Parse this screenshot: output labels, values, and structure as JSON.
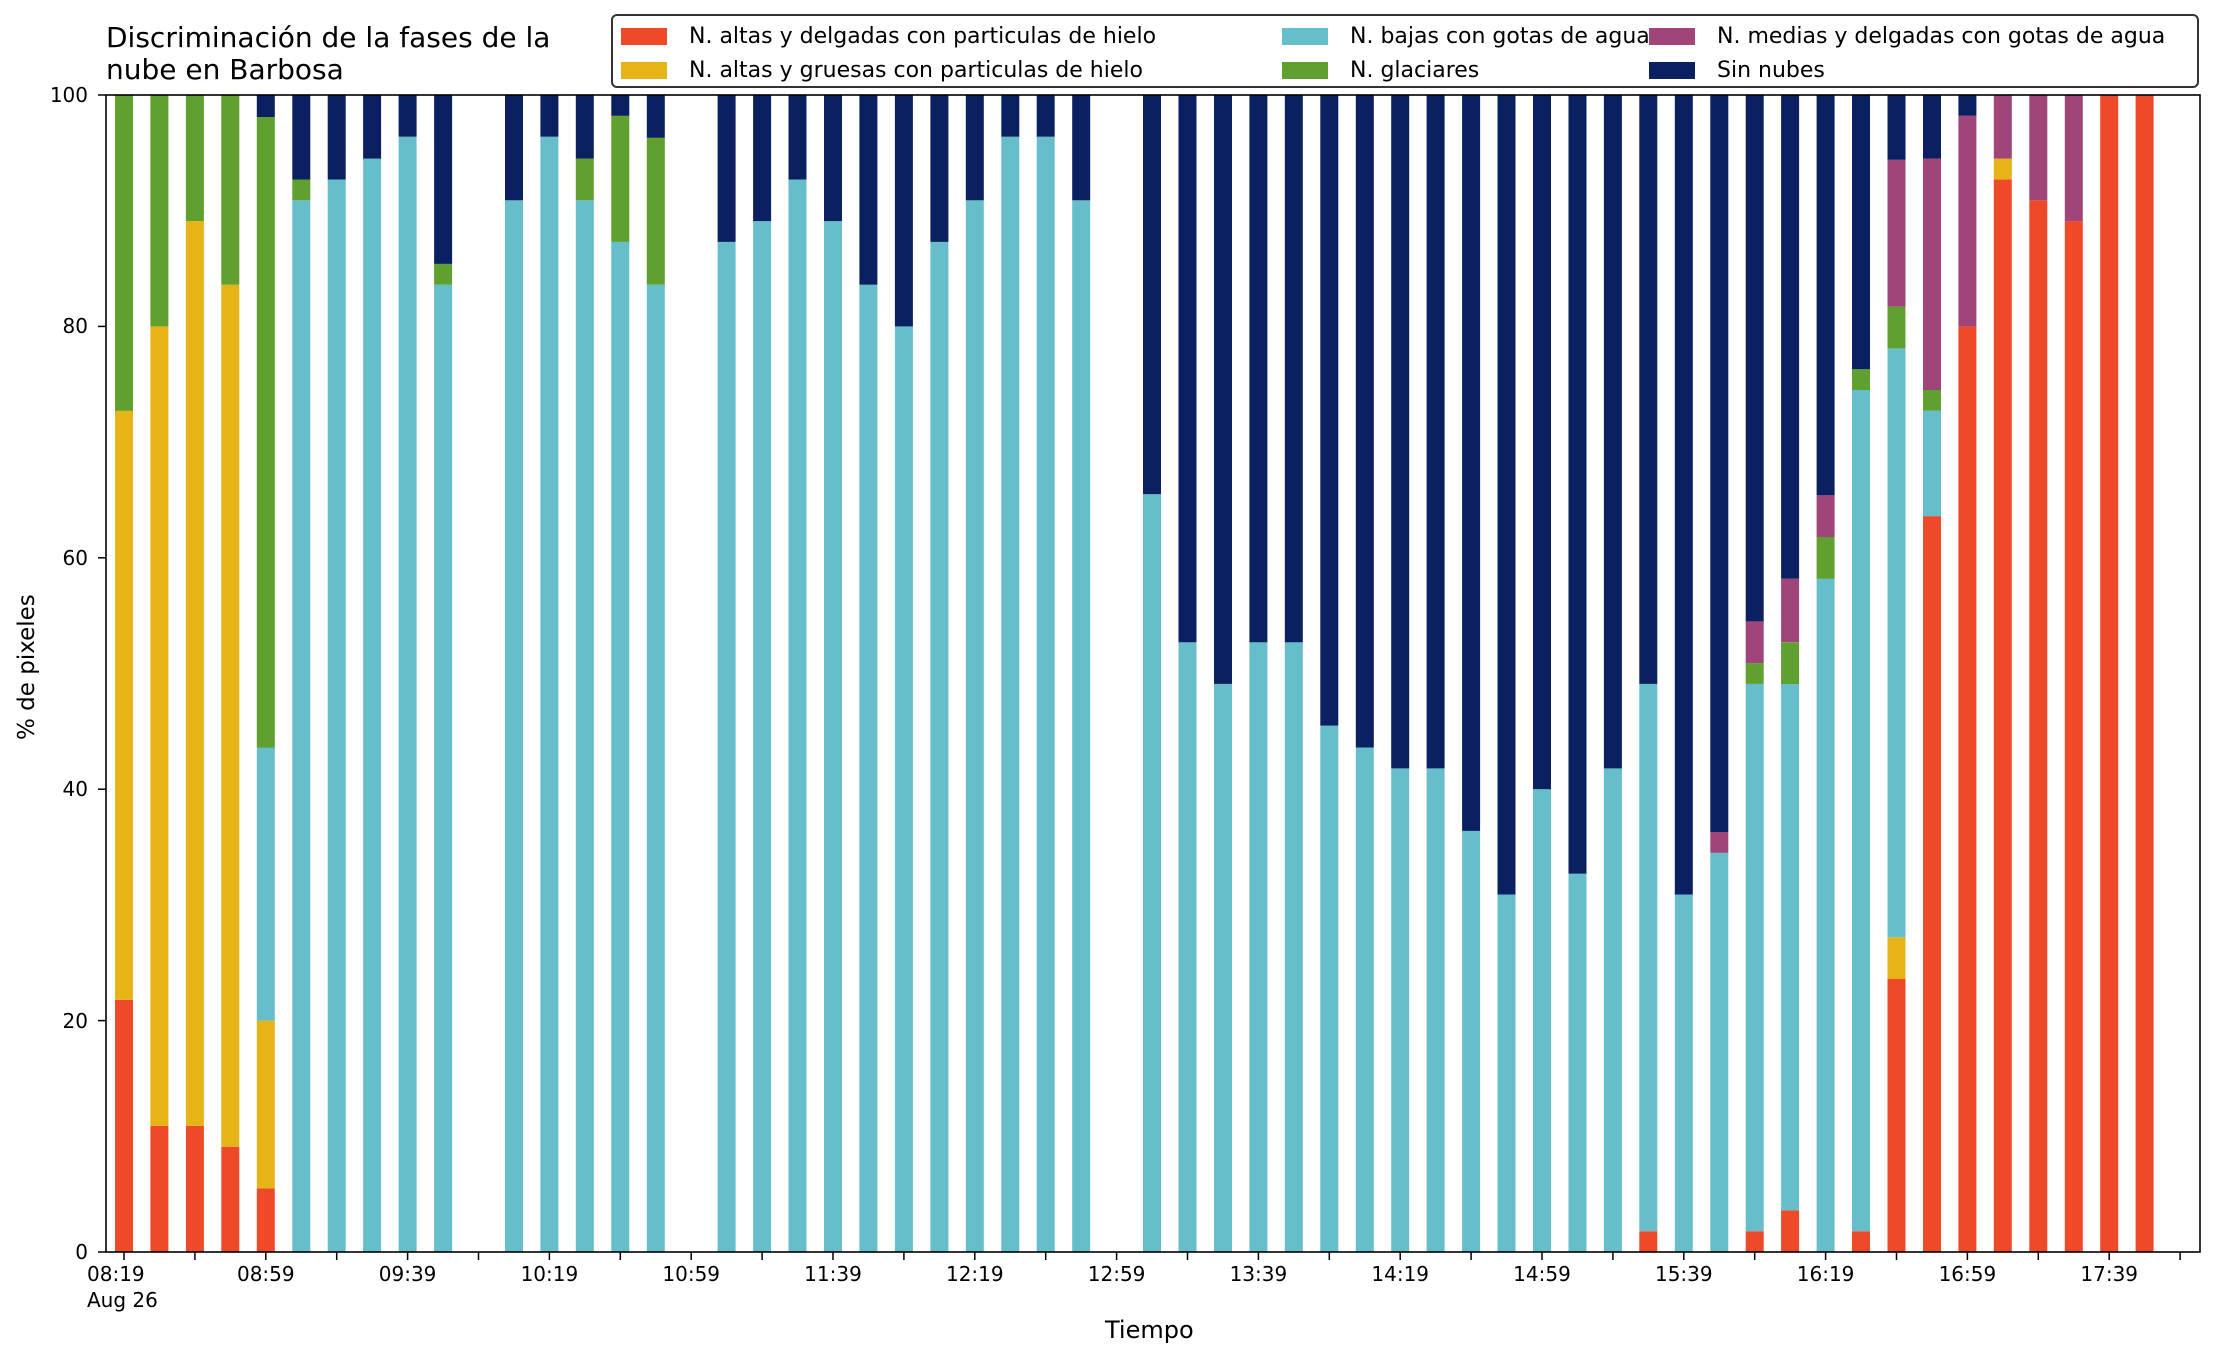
{
  "colors": {
    "ice_thin": "#EE4A2A",
    "ice_thick": "#E6B417",
    "water_low": "#66BECA",
    "glacial": "#5FA02E",
    "water_mid": "#A0457A",
    "clear": "#0A2060"
  },
  "chart_data": {
    "type": "bar",
    "stacked": true,
    "title": "Discriminación de la fases de la\nnube en Barbosa",
    "xlabel": "Tiempo",
    "ylabel": "% de pixeles",
    "ylim": [
      0,
      100
    ],
    "yticks": [
      "0",
      "20",
      "40",
      "60",
      "80",
      "100"
    ],
    "xtick_labels": [
      "08:19",
      "08:59",
      "09:39",
      "10:19",
      "10:59",
      "11:39",
      "12:19",
      "12:59",
      "13:39",
      "14:19",
      "14:59",
      "15:39",
      "16:19",
      "16:59",
      "17:39"
    ],
    "x_sublabel": "Aug 26",
    "legend_position": "top-right",
    "series": [
      {
        "name": "N. altas y delgadas con particulas de hielo",
        "color_key": "ice_thin"
      },
      {
        "name": "N. altas y gruesas con particulas de hielo",
        "color_key": "ice_thick"
      },
      {
        "name": "N. bajas con gotas de agua",
        "color_key": "water_low"
      },
      {
        "name": "N. glaciares",
        "color_key": "glacial"
      },
      {
        "name": "N. medias y delgadas con gotas de agua",
        "color_key": "water_mid"
      },
      {
        "name": "Sin nubes",
        "color_key": "clear"
      }
    ],
    "bars": [
      {
        "time": "08:19",
        "values": [
          21.8,
          50.9,
          0,
          27.3,
          0,
          0
        ]
      },
      {
        "time": "08:29",
        "values": [
          10.9,
          69.1,
          0,
          20.0,
          0,
          0
        ]
      },
      {
        "time": "08:39",
        "values": [
          10.9,
          78.2,
          0,
          10.9,
          0,
          0
        ]
      },
      {
        "time": "08:49",
        "values": [
          9.1,
          74.5,
          0,
          16.4,
          0,
          0
        ]
      },
      {
        "time": "08:59",
        "values": [
          5.5,
          14.5,
          23.6,
          54.5,
          0,
          1.9
        ]
      },
      {
        "time": "09:09",
        "values": [
          0,
          0,
          90.9,
          1.8,
          0,
          7.3
        ]
      },
      {
        "time": "09:19",
        "values": [
          0,
          0,
          92.7,
          0,
          0,
          7.3
        ]
      },
      {
        "time": "09:29",
        "values": [
          0,
          0,
          94.5,
          0,
          0,
          5.5
        ]
      },
      {
        "time": "09:39",
        "values": [
          0,
          0,
          96.4,
          0,
          0,
          3.6
        ]
      },
      {
        "time": "09:49",
        "values": [
          0,
          0,
          83.6,
          1.8,
          0,
          14.6
        ]
      },
      {
        "time": "10:09",
        "values": [
          0,
          0,
          90.9,
          0,
          0,
          9.1
        ]
      },
      {
        "time": "10:19",
        "values": [
          0,
          0,
          96.4,
          0,
          0,
          3.6
        ]
      },
      {
        "time": "10:29",
        "values": [
          0,
          0,
          90.9,
          3.6,
          0,
          5.5
        ]
      },
      {
        "time": "10:39",
        "values": [
          0,
          0,
          87.3,
          10.9,
          0,
          1.8
        ]
      },
      {
        "time": "10:49",
        "values": [
          0,
          0,
          83.6,
          12.7,
          0,
          3.7
        ]
      },
      {
        "time": "11:09",
        "values": [
          0,
          0,
          87.3,
          0,
          0,
          12.7
        ]
      },
      {
        "time": "11:19",
        "values": [
          0,
          0,
          89.1,
          0,
          0,
          10.9
        ]
      },
      {
        "time": "11:29",
        "values": [
          0,
          0,
          92.7,
          0,
          0,
          7.3
        ]
      },
      {
        "time": "11:39",
        "values": [
          0,
          0,
          89.1,
          0,
          0,
          10.9
        ]
      },
      {
        "time": "11:49",
        "values": [
          0,
          0,
          83.6,
          0,
          0,
          16.4
        ]
      },
      {
        "time": "11:59",
        "values": [
          0,
          0,
          80.0,
          0,
          0,
          20.0
        ]
      },
      {
        "time": "12:09",
        "values": [
          0,
          0,
          87.3,
          0,
          0,
          12.7
        ]
      },
      {
        "time": "12:19",
        "values": [
          0,
          0,
          90.9,
          0,
          0,
          9.1
        ]
      },
      {
        "time": "12:29",
        "values": [
          0,
          0,
          96.4,
          0,
          0,
          3.6
        ]
      },
      {
        "time": "12:39",
        "values": [
          0,
          0,
          96.4,
          0,
          0,
          3.6
        ]
      },
      {
        "time": "12:49",
        "values": [
          0,
          0,
          90.9,
          0,
          0,
          9.1
        ]
      },
      {
        "time": "13:09",
        "values": [
          0,
          0,
          65.5,
          0,
          0,
          34.5
        ]
      },
      {
        "time": "13:19",
        "values": [
          0,
          0,
          52.7,
          0,
          0,
          47.3
        ]
      },
      {
        "time": "13:29",
        "values": [
          0,
          0,
          49.1,
          0,
          0,
          50.9
        ]
      },
      {
        "time": "13:39",
        "values": [
          0,
          0,
          52.7,
          0,
          0,
          47.3
        ]
      },
      {
        "time": "13:49",
        "values": [
          0,
          0,
          52.7,
          0,
          0,
          47.3
        ]
      },
      {
        "time": "13:59",
        "values": [
          0,
          0,
          45.5,
          0,
          0,
          54.5
        ]
      },
      {
        "time": "14:09",
        "values": [
          0,
          0,
          43.6,
          0,
          0,
          56.4
        ]
      },
      {
        "time": "14:19",
        "values": [
          0,
          0,
          41.8,
          0,
          0,
          58.2
        ]
      },
      {
        "time": "14:29",
        "values": [
          0,
          0,
          41.8,
          0,
          0,
          58.2
        ]
      },
      {
        "time": "14:39",
        "values": [
          0,
          0,
          36.4,
          0,
          0,
          63.6
        ]
      },
      {
        "time": "14:49",
        "values": [
          0,
          0,
          30.9,
          0,
          0,
          69.1
        ]
      },
      {
        "time": "14:59",
        "values": [
          0,
          0,
          40.0,
          0,
          0,
          60.0
        ]
      },
      {
        "time": "15:09",
        "values": [
          0,
          0,
          32.7,
          0,
          0,
          67.3
        ]
      },
      {
        "time": "15:19",
        "values": [
          0,
          0,
          41.8,
          0,
          0,
          58.2
        ]
      },
      {
        "time": "15:29",
        "values": [
          1.8,
          0,
          47.3,
          0,
          0,
          50.9
        ]
      },
      {
        "time": "15:39",
        "values": [
          0,
          0,
          30.9,
          0,
          0,
          69.1
        ]
      },
      {
        "time": "15:49",
        "values": [
          0,
          0,
          34.5,
          0,
          1.8,
          63.7
        ]
      },
      {
        "time": "15:59",
        "values": [
          1.8,
          0,
          47.3,
          1.8,
          3.6,
          45.5
        ]
      },
      {
        "time": "16:09",
        "values": [
          3.6,
          0,
          45.5,
          3.6,
          5.5,
          41.8
        ]
      },
      {
        "time": "16:19",
        "values": [
          0,
          0,
          58.2,
          3.6,
          3.6,
          34.6
        ]
      },
      {
        "time": "16:29",
        "values": [
          1.8,
          0,
          72.7,
          1.8,
          0,
          23.7
        ]
      },
      {
        "time": "16:39",
        "values": [
          23.6,
          3.6,
          50.9,
          3.6,
          12.7,
          5.6
        ]
      },
      {
        "time": "16:49",
        "values": [
          63.6,
          0,
          9.1,
          1.8,
          20.0,
          5.5
        ]
      },
      {
        "time": "16:59",
        "values": [
          80.0,
          0,
          0,
          0,
          18.2,
          1.8
        ]
      },
      {
        "time": "17:09",
        "values": [
          92.7,
          1.8,
          0,
          0,
          5.5,
          0
        ]
      },
      {
        "time": "17:19",
        "values": [
          90.9,
          0,
          0,
          0,
          9.1,
          0
        ]
      },
      {
        "time": "17:29",
        "values": [
          89.1,
          0,
          0,
          0,
          10.9,
          0
        ]
      },
      {
        "time": "17:39",
        "values": [
          100,
          0,
          0,
          0,
          0,
          0
        ]
      },
      {
        "time": "17:49",
        "values": [
          100,
          0,
          0,
          0,
          0,
          0
        ]
      }
    ]
  }
}
